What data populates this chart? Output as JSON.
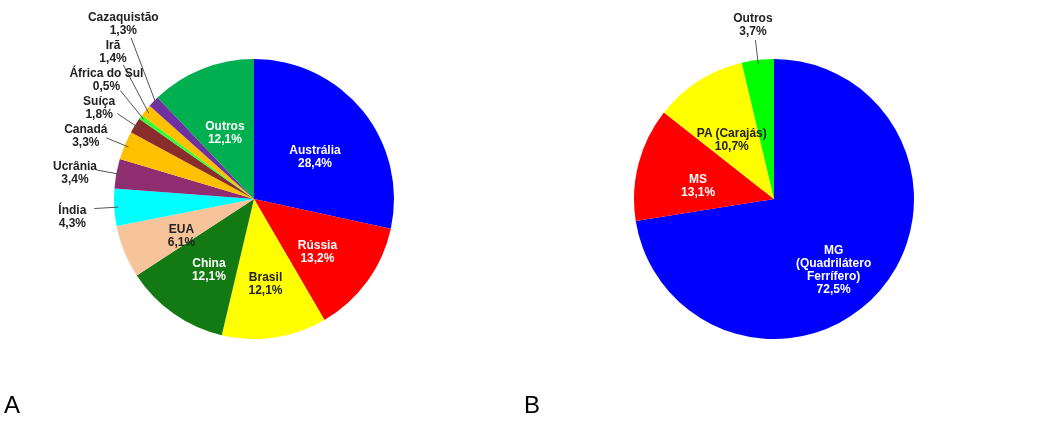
{
  "chart_data": [
    {
      "type": "pie",
      "categories": [
        "Austrália",
        "Rússia",
        "Brasil",
        "China",
        "EUA",
        "Índia",
        "Ucrânia",
        "Canadá",
        "Suíça",
        "África do Sul",
        "Irã",
        "Cazaquistão",
        "Outros"
      ],
      "values": [
        28.4,
        13.2,
        12.1,
        12.1,
        6.1,
        4.3,
        3.4,
        3.3,
        1.8,
        0.5,
        1.4,
        1.3,
        12.1
      ],
      "colors": [
        "#0000ff",
        "#ff0000",
        "#ffff00",
        "#137a13",
        "#f7c39b",
        "#00ffff",
        "#8e2e70",
        "#ffc000",
        "#8b2c2c",
        "#33ff33",
        "#ffc000",
        "#7030a0",
        "#00b050"
      ],
      "value_labels": [
        "28,4%",
        "13,2%",
        "12,1%",
        "12,1%",
        "6,1%",
        "4,3%",
        "3,4%",
        "3,3%",
        "1,8%",
        "0,5%",
        "1,4%",
        "1,3%",
        "12,1%"
      ],
      "annotations": [
        "A"
      ]
    },
    {
      "type": "pie",
      "categories": [
        "MG (Quadrilátero Ferrífero)",
        "MS",
        "PA (Carajás)",
        "Outros"
      ],
      "values": [
        72.5,
        13.1,
        10.7,
        3.7
      ],
      "colors": [
        "#0000ff",
        "#ff0000",
        "#ffff00",
        "#00ff00"
      ],
      "value_labels": [
        "72,5%",
        "13,1%",
        "10,7%",
        "3,7%"
      ],
      "annotations": [
        "B"
      ]
    }
  ]
}
